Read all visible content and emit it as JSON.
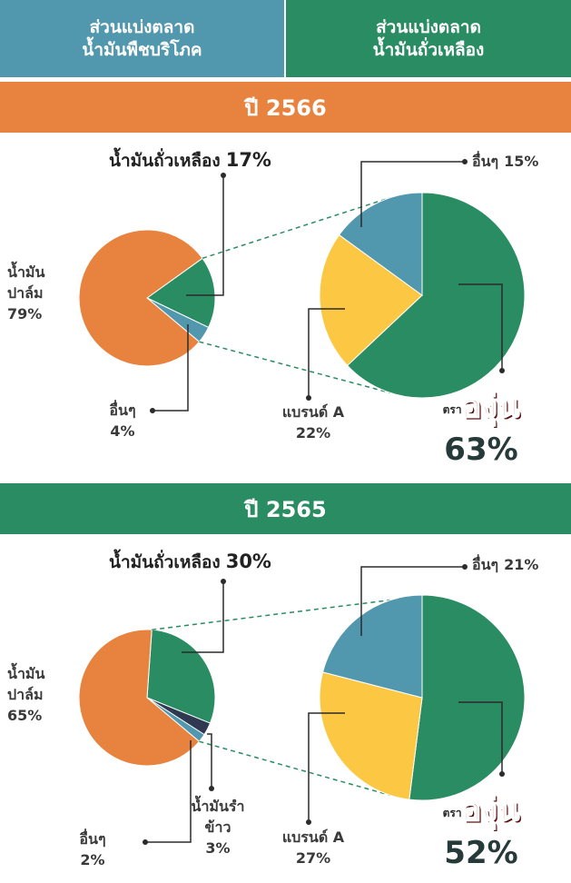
{
  "header": {
    "tabs": [
      [
        "ส่วนแบ่งตลาด",
        "น้ำมันพืชบริโภค"
      ],
      [
        "ส่วนแบ่งตลาด",
        "น้ำมันถั่วเหลือง"
      ]
    ]
  },
  "sections": [
    {
      "title": "ปี 2566"
    },
    {
      "title": "ปี 2565"
    }
  ],
  "chart_data": [
    {
      "type": "pie",
      "categories": [
        "น้ำมันปาล์ม",
        "น้ำมันถั่วเหลือง",
        "อื่นๆ"
      ],
      "values": [
        79,
        17,
        4
      ],
      "value_labels": [
        "79%",
        "17%",
        "4%"
      ],
      "colors": [
        "#e8833f",
        "#2a8c62",
        "#5197ae"
      ]
    },
    {
      "type": "pie",
      "brand_prefix": "ตรา",
      "categories": [
        "องุ่น",
        "แบรนด์ A",
        "อื่นๆ"
      ],
      "values": [
        63,
        22,
        15
      ],
      "value_labels": [
        "63%",
        "22%",
        "15%"
      ],
      "colors": [
        "#2a8c62",
        "#fcc844",
        "#5197ae"
      ]
    },
    {
      "type": "pie",
      "categories": [
        "น้ำมันปาล์ม",
        "น้ำมันถั่วเหลือง",
        "น้ำมันรำข้าว",
        "อื่นๆ"
      ],
      "values": [
        65,
        30,
        3,
        2
      ],
      "value_labels": [
        "65%",
        "30%",
        "3%",
        "2%"
      ],
      "colors": [
        "#e8833f",
        "#2a8c62",
        "#2f3a52",
        "#5197ae"
      ]
    },
    {
      "type": "pie",
      "brand_prefix": "ตรา",
      "categories": [
        "องุ่น",
        "แบรนด์ A",
        "อื่นๆ"
      ],
      "values": [
        52,
        27,
        21
      ],
      "value_labels": [
        "52%",
        "27%",
        "21%"
      ],
      "colors": [
        "#2a8c62",
        "#fcc844",
        "#5197ae"
      ]
    }
  ]
}
